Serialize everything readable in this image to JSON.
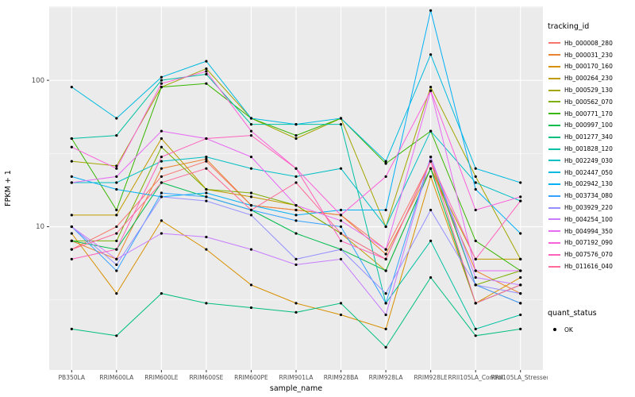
{
  "chart_data": {
    "type": "line",
    "title": "",
    "xlabel": "sample_name",
    "ylabel": "FPKM + 1",
    "y_scale": "log10",
    "ylim": [
      1.05,
      320
    ],
    "y_major_ticks": [
      10,
      100
    ],
    "y_minor_ticks": [
      3.162,
      31.62,
      316.2
    ],
    "grid": "on",
    "panel_color": "#EBEBEB",
    "grid_color": "#FFFFFF",
    "axis_text_color": "#4D4D4D",
    "point_color": "#000000",
    "legend": {
      "position": "right",
      "tracking_title": "tracking_id",
      "quant_title": "quant_status",
      "quant_value": "OK"
    },
    "categories": [
      "PB350LA",
      "RRIM600LA",
      "RRIM600LE",
      "RRIM600SE",
      "RRIM600PE",
      "RRIM901LA",
      "RRIM928BA",
      "RRIM928LA",
      "RRIM928LE",
      "RRII105LA_Control",
      "RRII105LA_Stressed"
    ],
    "series": [
      {
        "name": "Hb_000008_280",
        "color": "#F8766D",
        "values": [
          7,
          10,
          22,
          28,
          14,
          13,
          12,
          7,
          28,
          4,
          3
        ]
      },
      {
        "name": "Hb_000031_230",
        "color": "#EA8331",
        "values": [
          8,
          6,
          25,
          29,
          14,
          13,
          12,
          6.5,
          25,
          5,
          3.5
        ]
      },
      {
        "name": "Hb_000170_160",
        "color": "#D89000",
        "values": [
          9,
          3.5,
          11,
          7,
          4,
          3,
          2.5,
          2,
          22,
          3,
          4.5
        ]
      },
      {
        "name": "Hb_000264_230",
        "color": "#C09B00",
        "values": [
          12,
          12,
          40,
          18,
          16,
          14,
          9,
          5,
          25,
          6,
          6
        ]
      },
      {
        "name": "Hb_000529_130",
        "color": "#A3A500",
        "values": [
          28,
          26,
          90,
          120,
          55,
          40,
          55,
          10,
          90,
          22,
          6
        ]
      },
      {
        "name": "Hb_000562_070",
        "color": "#7CAE00",
        "values": [
          8,
          8,
          35,
          18,
          17,
          14,
          9,
          6,
          28,
          4,
          5
        ]
      },
      {
        "name": "Hb_000771_170",
        "color": "#39B600",
        "values": [
          40,
          13,
          90,
          95,
          55,
          42,
          55,
          27,
          45,
          8,
          5
        ]
      },
      {
        "name": "Hb_000997_100",
        "color": "#00BB4E",
        "values": [
          8,
          7,
          20,
          16,
          13,
          9,
          7,
          5,
          25,
          3,
          4
        ]
      },
      {
        "name": "Hb_001277_340",
        "color": "#00BF7D",
        "values": [
          2,
          1.8,
          3.5,
          3,
          2.8,
          2.6,
          3,
          1.5,
          4.5,
          1.8,
          2
        ]
      },
      {
        "name": "Hb_001828_120",
        "color": "#00C1A3",
        "values": [
          40,
          42,
          100,
          110,
          50,
          50,
          50,
          3,
          8,
          2,
          2.5
        ]
      },
      {
        "name": "Hb_002249_030",
        "color": "#00BFC4",
        "values": [
          20,
          20,
          28,
          30,
          25,
          22,
          25,
          10,
          45,
          20,
          15
        ]
      },
      {
        "name": "Hb_002447_050",
        "color": "#00BAE0",
        "values": [
          90,
          55,
          105,
          135,
          55,
          50,
          55,
          28,
          150,
          25,
          20
        ]
      },
      {
        "name": "Hb_002942_130",
        "color": "#00B0F6",
        "values": [
          22,
          18,
          16,
          17,
          14,
          12,
          13,
          13,
          300,
          18,
          9
        ]
      },
      {
        "name": "Hb_003734_080",
        "color": "#35A2FF",
        "values": [
          10,
          5,
          17,
          16,
          13,
          11,
          10,
          3,
          30,
          4,
          3
        ]
      },
      {
        "name": "Hb_003929_220",
        "color": "#9590FF",
        "values": [
          10,
          5.5,
          16,
          15,
          12,
          6,
          7,
          3.5,
          13,
          4,
          3.5
        ]
      },
      {
        "name": "Hb_004254_100",
        "color": "#C77CFF",
        "values": [
          10,
          6,
          9,
          8.5,
          7,
          5.5,
          6,
          2.5,
          30,
          4.5,
          4
        ]
      },
      {
        "name": "Hb_004994_350",
        "color": "#E76BF3",
        "values": [
          20,
          22,
          45,
          40,
          30,
          14,
          11,
          7,
          85,
          5,
          5
        ]
      },
      {
        "name": "Hb_007192_090",
        "color": "#FA62DB",
        "values": [
          35,
          25,
          95,
          115,
          45,
          25,
          12,
          22,
          85,
          13,
          16
        ]
      },
      {
        "name": "Hb_007576_070",
        "color": "#FF62BC",
        "values": [
          6,
          7,
          30,
          40,
          42,
          25,
          8,
          6,
          28,
          6,
          15
        ]
      },
      {
        "name": "Hb_011616_040",
        "color": "#FF6A98",
        "values": [
          7,
          9,
          20,
          25,
          13,
          20,
          9,
          6,
          28,
          3,
          4
        ]
      }
    ]
  }
}
